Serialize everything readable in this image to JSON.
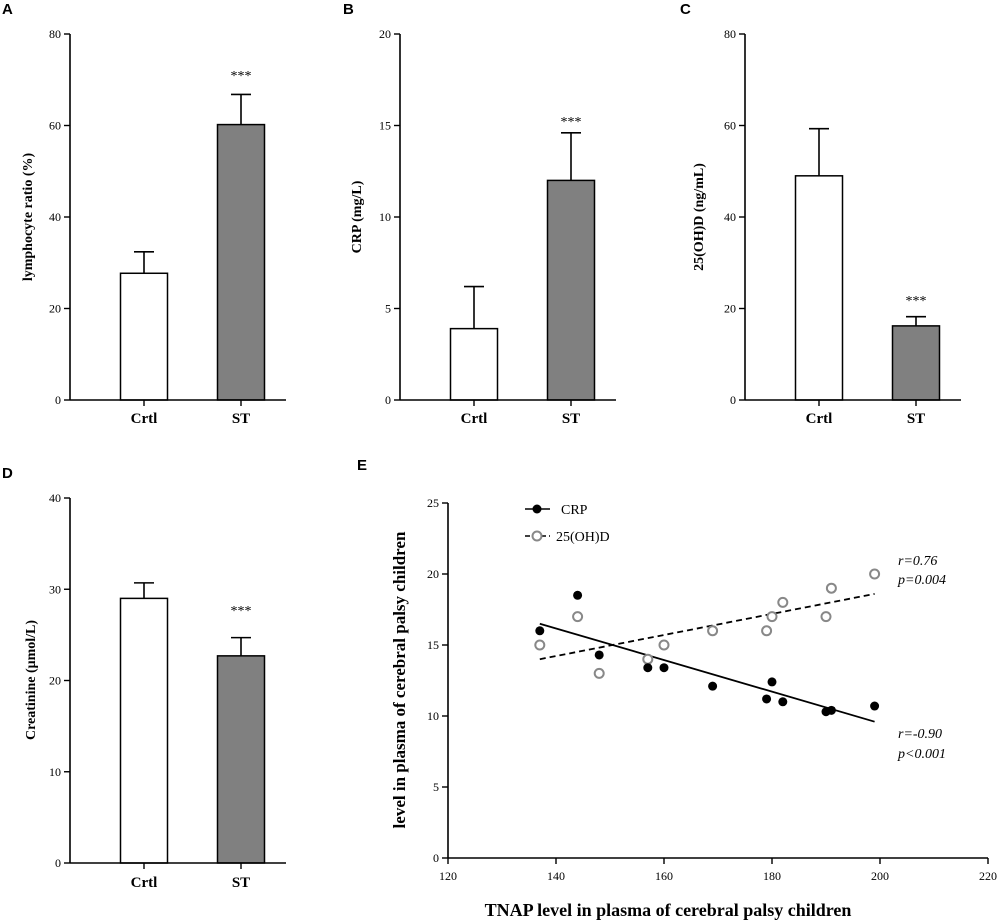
{
  "colors": {
    "ctrl_fill": "#ffffff",
    "st_fill": "#808080",
    "axis": "#000000",
    "d2_marker": "#888888"
  },
  "chart_data": [
    {
      "id": "A",
      "type": "bar",
      "panel_label": "A",
      "categories": [
        "Crtl",
        "ST"
      ],
      "values": [
        27.7,
        60.2
      ],
      "errors": [
        4.7,
        6.6
      ],
      "annotations": [
        "",
        "***"
      ],
      "ylabel": "lymphocyte ratio (%)",
      "ylim": [
        0,
        80
      ],
      "yticks": [
        "0",
        "20",
        "40",
        "60",
        "80"
      ]
    },
    {
      "id": "B",
      "type": "bar",
      "panel_label": "B",
      "categories": [
        "Crtl",
        "ST"
      ],
      "values": [
        3.9,
        12.0
      ],
      "errors": [
        2.3,
        2.6
      ],
      "annotations": [
        "",
        "***"
      ],
      "ylabel": "CRP (mg/L)",
      "ylim": [
        0,
        20
      ],
      "yticks": [
        "0",
        "5",
        "10",
        "15",
        "20"
      ]
    },
    {
      "id": "C",
      "type": "bar",
      "panel_label": "C",
      "categories": [
        "Crtl",
        "ST"
      ],
      "values": [
        49.0,
        16.2
      ],
      "errors": [
        10.3,
        2.0
      ],
      "annotations": [
        "",
        "***"
      ],
      "ylabel": "25(OH)D (ng/mL)",
      "ylim": [
        0,
        80
      ],
      "yticks": [
        "0",
        "20",
        "40",
        "60",
        "80"
      ]
    },
    {
      "id": "D",
      "type": "bar",
      "panel_label": "D",
      "categories": [
        "Crtl",
        "ST"
      ],
      "values": [
        29.0,
        22.7
      ],
      "errors": [
        1.7,
        2.0
      ],
      "annotations": [
        "",
        "***"
      ],
      "ylabel": "Creatinine (μmol/L)",
      "ylim": [
        0,
        40
      ],
      "yticks": [
        "0",
        "10",
        "20",
        "30",
        "40"
      ]
    },
    {
      "id": "E",
      "type": "scatter",
      "panel_label": "E",
      "xlabel": "TNAP level in plasma of cerebral palsy children",
      "ylabel": "level in plasma of cerebral palsy children",
      "xlim": [
        120,
        220
      ],
      "ylim": [
        0,
        25
      ],
      "xticks": [
        "120",
        "140",
        "160",
        "180",
        "200",
        "220"
      ],
      "yticks": [
        "0",
        "5",
        "10",
        "15",
        "20",
        "25"
      ],
      "series": [
        {
          "name": "CRP",
          "points": [
            [
              137,
              16.0
            ],
            [
              144,
              18.5
            ],
            [
              148,
              14.3
            ],
            [
              157,
              13.4
            ],
            [
              160,
              13.4
            ],
            [
              169,
              12.1
            ],
            [
              179,
              11.2
            ],
            [
              180,
              12.4
            ],
            [
              182,
              11.0
            ],
            [
              190,
              10.3
            ],
            [
              191,
              10.4
            ],
            [
              199,
              10.7
            ]
          ],
          "fit": [
            [
              137,
              16.5
            ],
            [
              199,
              9.6
            ]
          ],
          "stat_r": "r=-0.90",
          "stat_p": "p<0.001"
        },
        {
          "name": "25(OH)D",
          "points": [
            [
              137,
              15.0
            ],
            [
              144,
              17.0
            ],
            [
              148,
              13.0
            ],
            [
              157,
              14.0
            ],
            [
              160,
              15.0
            ],
            [
              169,
              16.0
            ],
            [
              179,
              16.0
            ],
            [
              180,
              17.0
            ],
            [
              182,
              18.0
            ],
            [
              190,
              17.0
            ],
            [
              191,
              19.0
            ],
            [
              199,
              20.0
            ]
          ],
          "fit": [
            [
              137,
              14.0
            ],
            [
              199,
              18.6
            ]
          ],
          "stat_r": "r=0.76",
          "stat_p": "p=0.004"
        }
      ]
    }
  ]
}
